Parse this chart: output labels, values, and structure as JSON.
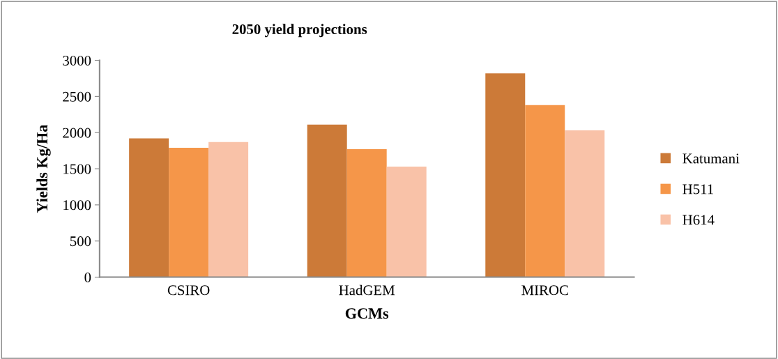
{
  "chart_data": {
    "type": "bar",
    "title": "2050 yield projections",
    "xlabel": "GCMs",
    "ylabel": "Yields Kg/Ha",
    "categories": [
      "CSIRO",
      "HadGEM",
      "MIROC"
    ],
    "series": [
      {
        "name": "Katumani",
        "color": "#cc7a38",
        "values": [
          1920,
          2110,
          2820
        ]
      },
      {
        "name": "H511",
        "color": "#f59649",
        "values": [
          1790,
          1770,
          2380
        ]
      },
      {
        "name": "H614",
        "color": "#f9c2a8",
        "values": [
          1870,
          1530,
          2030
        ]
      }
    ],
    "ylim": [
      0,
      3000
    ],
    "yticks": [
      0,
      500,
      1000,
      1500,
      2000,
      2500,
      3000
    ],
    "grid": false,
    "legend": "right"
  }
}
